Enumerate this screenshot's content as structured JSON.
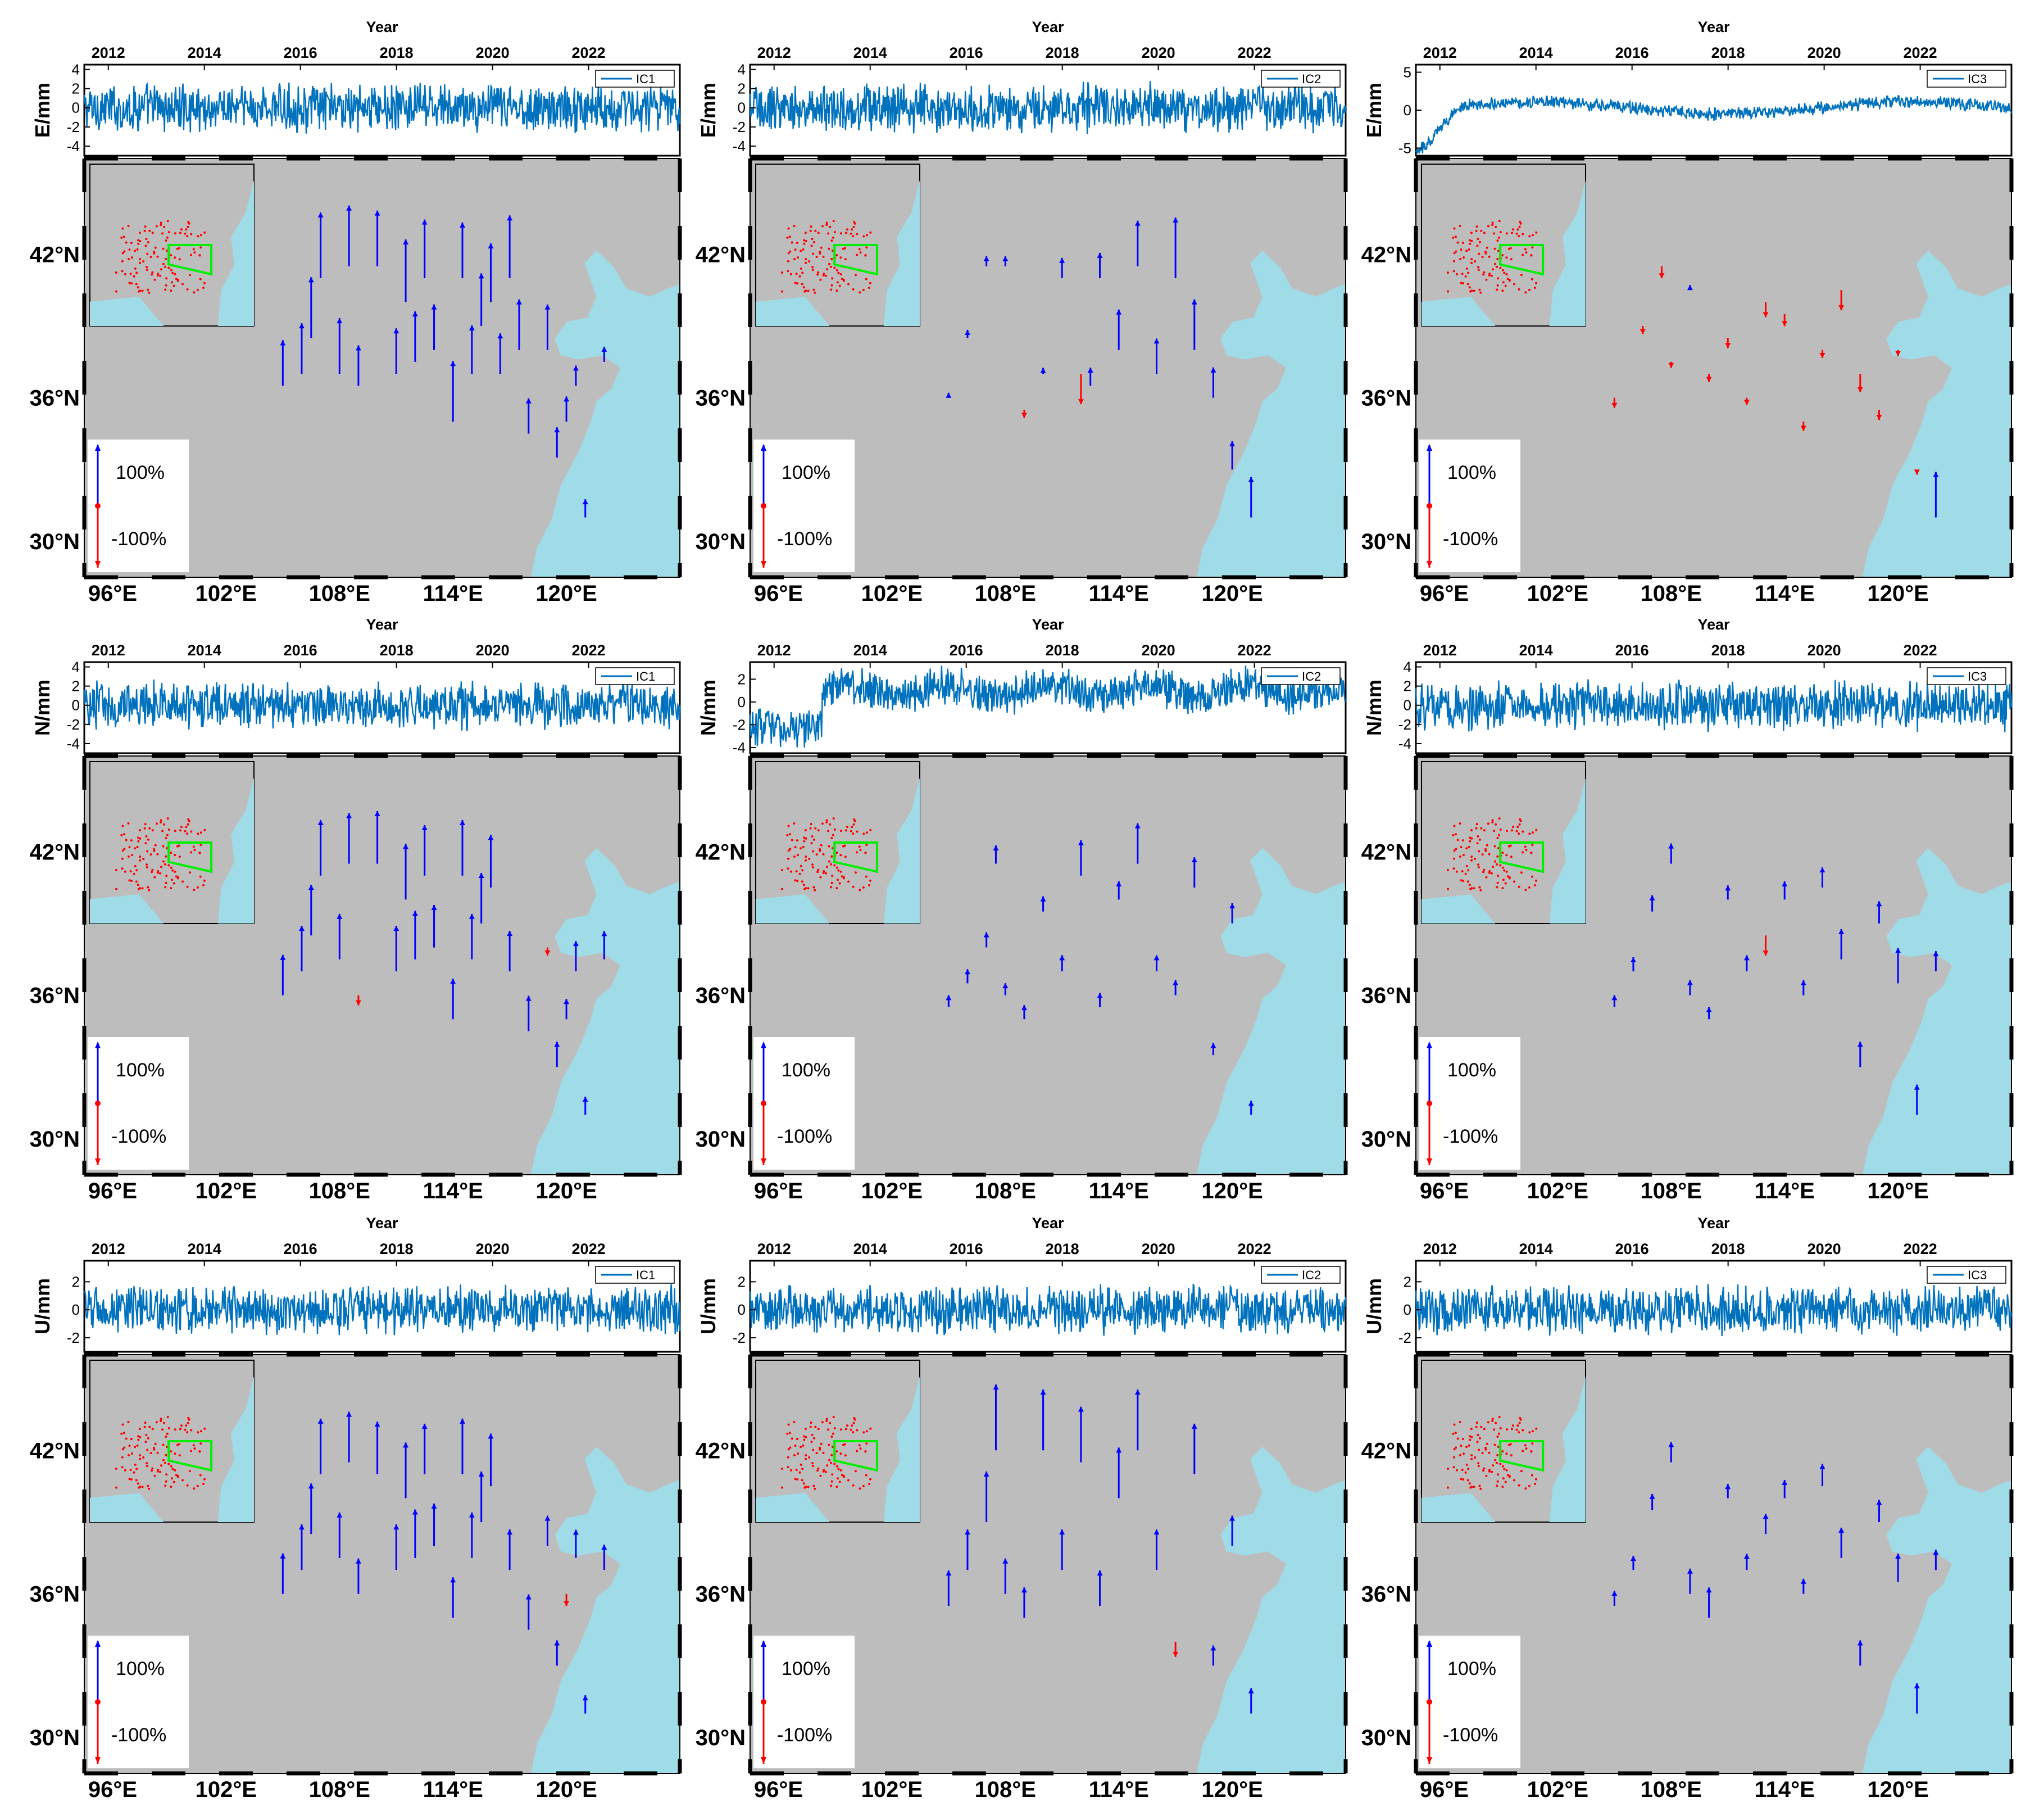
{
  "figure": {
    "year_axis_label": "Year",
    "year_ticks": [
      "2012",
      "2014",
      "2016",
      "2018",
      "2020",
      "2022"
    ],
    "lon_ticks": [
      "96°E",
      "102°E",
      "108°E",
      "114°E",
      "120°E"
    ],
    "lat_ticks": [
      "42°N",
      "36°N",
      "30°N"
    ],
    "scale_legend": {
      "positive": "100%",
      "negative": "-100%"
    },
    "colors": {
      "series_line": "#0072bd",
      "land": "#bdbdbd",
      "sea": "#9fdce8",
      "positive_arrow": "#0000ff",
      "negative_arrow": "#ff0000",
      "inset_box": "#00ee00"
    }
  },
  "rows": [
    {
      "component": "E/mm",
      "panels": [
        {
          "ic": "IC1",
          "yticks": [
            "4",
            "2",
            "0",
            "-2",
            "-4"
          ]
        },
        {
          "ic": "IC2",
          "yticks": [
            "4",
            "2",
            "0",
            "-2",
            "-4"
          ]
        },
        {
          "ic": "IC3",
          "yticks": [
            "5",
            "0",
            "-5"
          ]
        }
      ]
    },
    {
      "component": "N/mm",
      "panels": [
        {
          "ic": "IC1",
          "yticks": [
            "4",
            "2",
            "0",
            "-2",
            "-4"
          ]
        },
        {
          "ic": "IC2",
          "yticks": [
            "2",
            "0",
            "-2",
            "-4"
          ]
        },
        {
          "ic": "IC3",
          "yticks": [
            "4",
            "2",
            "0",
            "-2",
            "-4"
          ]
        }
      ]
    },
    {
      "component": "U/mm",
      "panels": [
        {
          "ic": "IC1",
          "yticks": [
            "2",
            "0",
            "-2"
          ]
        },
        {
          "ic": "IC2",
          "yticks": [
            "2",
            "0",
            "-2"
          ]
        },
        {
          "ic": "IC3",
          "yticks": [
            "2",
            "0",
            "-2"
          ]
        }
      ]
    }
  ],
  "chart_data": {
    "type": "multi-panel: time series + spatial response vector maps",
    "x_range_years": [
      2011.5,
      2023.9
    ],
    "map_extent": {
      "lon": [
        94.5,
        126
      ],
      "lat": [
        28.5,
        46
      ]
    },
    "panels": [
      {
        "component": "E",
        "ic": "IC1",
        "ylim": [
          -5,
          4.5
        ],
        "signal": {
          "trend": "none",
          "amplitude_mm": 3
        },
        "stations": {
          "lon": [
            105,
            106,
            106.5,
            107,
            108,
            108.5,
            109,
            110,
            111,
            111.5,
            112,
            112.5,
            113,
            114,
            114.5,
            115,
            115.5,
            116,
            116.5,
            117,
            117.5,
            118,
            119,
            119.5,
            120,
            120.5,
            121,
            122
          ],
          "lat": [
            36.5,
            37,
            38.5,
            41,
            37,
            41.5,
            36.5,
            41.5,
            37,
            40,
            37.5,
            41,
            38,
            35,
            41,
            37,
            39,
            40,
            37,
            41,
            38,
            34.5,
            38,
            33.5,
            35,
            36.5,
            31,
            37.5
          ],
          "response_pct": [
            45,
            50,
            60,
            65,
            55,
            60,
            40,
            55,
            45,
            62,
            50,
            58,
            45,
            60,
            55,
            48,
            52,
            58,
            40,
            62,
            50,
            35,
            45,
            30,
            25,
            20,
            18,
            15
          ]
        }
      },
      {
        "component": "E",
        "ic": "IC2",
        "ylim": [
          -5,
          4.5
        ],
        "signal": {
          "trend": "none",
          "amplitude_mm": 3
        },
        "stations": {
          "lon": [
            105,
            106,
            107,
            108,
            109,
            110,
            111,
            112,
            112.5,
            113,
            114,
            115,
            116,
            117,
            118,
            119,
            120,
            121
          ],
          "lat": [
            36,
            38.5,
            41.5,
            41.5,
            35.5,
            37,
            41,
            37,
            36.5,
            41,
            38,
            41.5,
            37,
            41,
            38,
            36,
            33,
            31
          ],
          "response_pct": [
            5,
            8,
            10,
            10,
            -8,
            6,
            20,
            -30,
            18,
            25,
            40,
            45,
            35,
            60,
            50,
            30,
            28,
            40
          ]
        }
      },
      {
        "component": "E",
        "ic": "IC3",
        "ylim": [
          -6,
          6
        ],
        "signal": {
          "trend": "ramp to ~0 after start of 2012",
          "amplitude_mm": 1
        },
        "stations": {
          "lon": [
            105,
            106.5,
            107.5,
            108,
            109,
            110,
            111,
            112,
            113,
            114,
            115,
            116,
            117,
            118,
            119,
            120,
            121,
            122
          ],
          "lat": [
            36,
            39,
            41.5,
            37.5,
            40.5,
            37,
            38.5,
            36,
            40,
            39.5,
            35,
            38,
            40.5,
            37,
            35.5,
            38,
            33,
            31
          ],
          "response_pct": [
            -10,
            -8,
            -12,
            -6,
            5,
            -8,
            -10,
            -7,
            -15,
            -12,
            -9,
            -8,
            -20,
            -18,
            -10,
            -6,
            -5,
            45
          ]
        }
      },
      {
        "component": "N",
        "ic": "IC1",
        "ylim": [
          -5,
          4.5
        ],
        "signal": {
          "trend": "none",
          "amplitude_mm": 3
        },
        "stations": {
          "lon": [
            105,
            106,
            106.5,
            107,
            108,
            108.5,
            109,
            110,
            111,
            111.5,
            112,
            112.5,
            113,
            114,
            114.5,
            115,
            115.5,
            116,
            117,
            118,
            119,
            119.5,
            120,
            120.5,
            121,
            122
          ],
          "lat": [
            36,
            37,
            38.5,
            41,
            37.5,
            41.5,
            36,
            41.5,
            37,
            40,
            37.5,
            41,
            38,
            35,
            41,
            37.5,
            39,
            40.5,
            37,
            34.5,
            38,
            33,
            35,
            37,
            31,
            37.5
          ],
          "response_pct": [
            40,
            45,
            50,
            55,
            45,
            50,
            -10,
            52,
            45,
            55,
            48,
            50,
            42,
            40,
            55,
            45,
            50,
            52,
            40,
            35,
            -8,
            25,
            20,
            30,
            18,
            28
          ]
        }
      },
      {
        "component": "N",
        "ic": "IC2",
        "ylim": [
          -4.5,
          3.5
        ],
        "signal": {
          "trend": "rise in 2013 then plateau",
          "amplitude_mm": 2
        },
        "stations": {
          "lon": [
            105,
            106,
            107,
            107.5,
            108,
            109,
            110,
            111,
            112,
            113,
            114,
            115,
            116,
            117,
            118,
            119,
            120,
            121
          ],
          "lat": [
            35.5,
            36.5,
            38,
            41.5,
            36,
            35,
            39.5,
            37,
            41,
            35.5,
            40,
            41.5,
            37,
            36,
            40.5,
            33.5,
            39,
            31
          ],
          "response_pct": [
            12,
            14,
            15,
            18,
            12,
            14,
            15,
            16,
            35,
            14,
            18,
            40,
            16,
            15,
            30,
            12,
            20,
            14
          ]
        }
      },
      {
        "component": "N",
        "ic": "IC3",
        "ylim": [
          -5,
          4.5
        ],
        "signal": {
          "trend": "none",
          "amplitude_mm": 3
        },
        "stations": {
          "lon": [
            105,
            106,
            107,
            108,
            109,
            110,
            111,
            112,
            113,
            114,
            115,
            116,
            117,
            118,
            119,
            120,
            121,
            122
          ],
          "lat": [
            35.5,
            37,
            39.5,
            41.5,
            36,
            35,
            40,
            37,
            38.5,
            40,
            36,
            40.5,
            37.5,
            33,
            39,
            36.5,
            31,
            37
          ],
          "response_pct": [
            12,
            14,
            16,
            20,
            15,
            12,
            14,
            16,
            -20,
            18,
            15,
            20,
            30,
            25,
            22,
            35,
            30,
            20
          ]
        }
      },
      {
        "component": "U",
        "ic": "IC1",
        "ylim": [
          -3,
          3.5
        ],
        "signal": {
          "trend": "none",
          "amplitude_mm": 2
        },
        "stations": {
          "lon": [
            105,
            106,
            106.5,
            107,
            108,
            108.5,
            109,
            110,
            111,
            111.5,
            112,
            112.5,
            113,
            114,
            114.5,
            115,
            115.5,
            116,
            117,
            118,
            119,
            119.5,
            120,
            120.5,
            121,
            122
          ],
          "lat": [
            36,
            37,
            38.5,
            41,
            37.5,
            41.5,
            36,
            41,
            37,
            40,
            37.5,
            41,
            38,
            35,
            41,
            37.5,
            39,
            40.5,
            37,
            34.5,
            38,
            33,
            36,
            37.5,
            31,
            37
          ],
          "response_pct": [
            40,
            45,
            50,
            55,
            45,
            50,
            35,
            52,
            45,
            55,
            48,
            50,
            42,
            40,
            55,
            45,
            50,
            52,
            40,
            35,
            30,
            25,
            -12,
            28,
            18,
            25
          ]
        }
      },
      {
        "component": "U",
        "ic": "IC2",
        "ylim": [
          -3,
          3.5
        ],
        "signal": {
          "trend": "none",
          "amplitude_mm": 2
        },
        "stations": {
          "lon": [
            105,
            106,
            107,
            107.5,
            108,
            109,
            110,
            111,
            112,
            113,
            114,
            115,
            116,
            117,
            118,
            119,
            120,
            121
          ],
          "lat": [
            35.5,
            37,
            39,
            42,
            36,
            35,
            42,
            37,
            41.5,
            35.5,
            40,
            42,
            37,
            34,
            41,
            33,
            38,
            31
          ],
          "response_pct": [
            35,
            40,
            50,
            65,
            35,
            30,
            60,
            40,
            55,
            35,
            50,
            60,
            40,
            -15,
            50,
            20,
            30,
            25
          ]
        }
      },
      {
        "component": "U",
        "ic": "IC3",
        "ylim": [
          -3,
          3.5
        ],
        "signal": {
          "trend": "none",
          "amplitude_mm": 2
        },
        "stations": {
          "lon": [
            105,
            106,
            107,
            108,
            109,
            110,
            111,
            112,
            113,
            114,
            115,
            116,
            117,
            118,
            119,
            120,
            121,
            122
          ],
          "lat": [
            35.5,
            37,
            39.5,
            41.5,
            36,
            35,
            40,
            37,
            38.5,
            40,
            36,
            40.5,
            37.5,
            33,
            39,
            36.5,
            31,
            37
          ],
          "response_pct": [
            15,
            14,
            16,
            20,
            25,
            30,
            14,
            16,
            20,
            18,
            15,
            22,
            30,
            25,
            22,
            28,
            30,
            20
          ]
        }
      }
    ]
  }
}
